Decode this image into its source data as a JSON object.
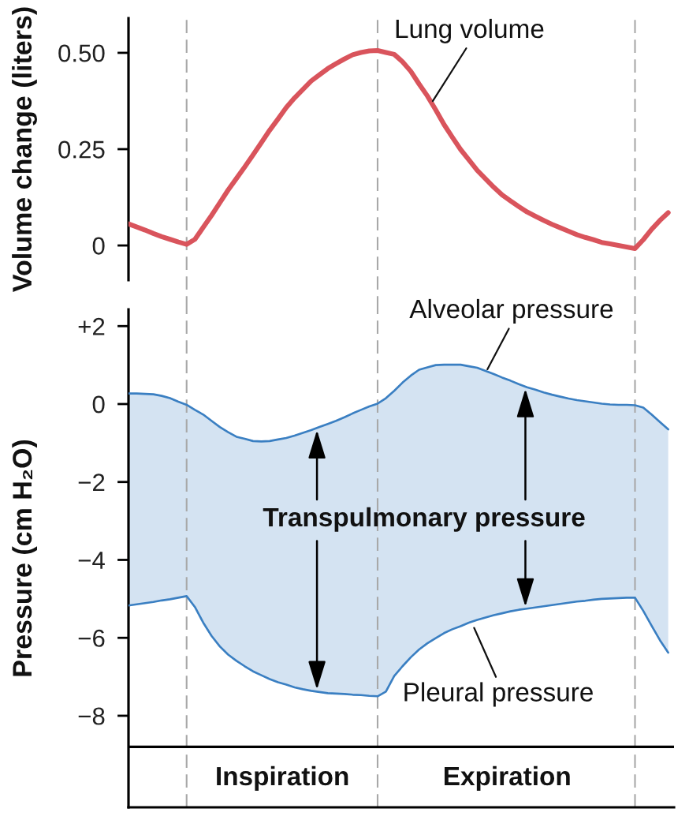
{
  "chart_data": [
    {
      "type": "line",
      "ylabel": "Volume change (liters)",
      "ylim": [
        -0.09,
        0.59
      ],
      "yticks": [
        0,
        {
          "value": 0.25,
          "label": "0.25"
        },
        {
          "value": 0.5,
          "label": "0.50"
        }
      ],
      "line_style": "solid",
      "grid": "x",
      "categories": [
        null,
        null,
        null,
        null,
        null,
        null,
        null,
        null,
        null,
        null,
        null,
        null,
        null,
        null,
        null,
        null,
        null,
        null,
        null,
        null,
        null,
        null,
        null,
        null,
        null,
        null,
        null,
        null,
        null,
        null,
        null,
        null,
        null,
        null,
        null,
        null,
        null,
        null,
        null,
        null,
        null,
        null,
        null,
        null,
        null,
        null,
        null,
        null,
        null,
        null,
        null,
        null,
        null,
        null,
        null,
        null,
        null,
        null,
        null,
        null,
        null,
        null,
        null,
        null,
        null,
        null
      ],
      "series": [
        {
          "name": "Lung volume",
          "color": "#d9545c",
          "values": [
            0.056,
            0.048,
            0.04,
            0.031,
            0.023,
            0.016,
            0.009,
            0.003,
            0.016,
            0.047,
            0.078,
            0.111,
            0.144,
            0.174,
            0.204,
            0.235,
            0.267,
            0.299,
            0.328,
            0.358,
            0.383,
            0.405,
            0.427,
            0.443,
            0.459,
            0.472,
            0.484,
            0.495,
            0.501,
            0.505,
            0.506,
            0.501,
            0.496,
            0.477,
            0.452,
            0.419,
            0.388,
            0.352,
            0.314,
            0.281,
            0.249,
            0.222,
            0.195,
            0.173,
            0.151,
            0.131,
            0.116,
            0.101,
            0.087,
            0.076,
            0.065,
            0.055,
            0.046,
            0.037,
            0.028,
            0.021,
            0.015,
            0.008,
            0.004,
            0.0,
            -0.004,
            -0.008,
            0.015,
            0.042,
            0.065,
            0.085
          ]
        }
      ]
    },
    {
      "type": "line",
      "ylabel": "Pressure (cm H₂O)",
      "ylim": [
        -10.35,
        2.43
      ],
      "yticks": [
        {
          "value": -8,
          "label": "−8"
        },
        {
          "value": -6,
          "label": "−6"
        },
        {
          "value": -4,
          "label": "−4"
        },
        {
          "value": -2,
          "label": "−2"
        },
        0,
        {
          "value": 2,
          "label": "+2"
        }
      ],
      "line_style": "solid",
      "grid": "x",
      "categories": [
        null,
        null,
        null,
        null,
        null,
        null,
        null,
        null,
        null,
        null,
        null,
        null,
        null,
        null,
        null,
        null,
        null,
        null,
        null,
        null,
        null,
        null,
        null,
        null,
        null,
        null,
        null,
        null,
        null,
        null,
        null,
        null,
        null,
        null,
        null,
        null,
        null,
        null,
        null,
        null,
        null,
        null,
        null,
        null,
        null,
        null,
        null,
        null,
        null,
        null,
        null,
        null,
        null,
        null,
        null,
        null,
        null,
        null,
        null,
        null,
        null,
        null,
        null,
        null,
        null,
        null
      ],
      "series": [
        {
          "name": "Alveolar pressure",
          "color": "#3a7fc2",
          "values": [
            0.27,
            0.27,
            0.26,
            0.25,
            0.21,
            0.15,
            0.06,
            -0.02,
            -0.15,
            -0.27,
            -0.43,
            -0.59,
            -0.72,
            -0.84,
            -0.89,
            -0.95,
            -0.96,
            -0.95,
            -0.91,
            -0.87,
            -0.81,
            -0.74,
            -0.67,
            -0.59,
            -0.51,
            -0.43,
            -0.34,
            -0.24,
            -0.15,
            -0.06,
            0.01,
            0.15,
            0.34,
            0.55,
            0.73,
            0.88,
            0.94,
            1.0,
            1.01,
            1.01,
            1.01,
            0.97,
            0.93,
            0.85,
            0.77,
            0.68,
            0.6,
            0.51,
            0.43,
            0.37,
            0.3,
            0.24,
            0.19,
            0.14,
            0.1,
            0.07,
            0.04,
            0.01,
            -0.01,
            -0.02,
            -0.02,
            -0.03,
            -0.09,
            -0.27,
            -0.46,
            -0.65
          ],
          "upper": [
            0.27,
            0.27,
            0.26,
            0.25,
            0.21,
            0.15,
            0.06,
            -0.02,
            -0.15,
            -0.27,
            -0.43,
            -0.59,
            -0.72,
            -0.84,
            -0.89,
            -0.95,
            -0.96,
            -0.95,
            -0.91,
            -0.87,
            -0.81,
            -0.74,
            -0.67,
            -0.59,
            -0.51,
            -0.43,
            -0.34,
            -0.24,
            -0.15,
            -0.06,
            0.01,
            0.15,
            0.34,
            0.55,
            0.73,
            0.88,
            0.94,
            1.0,
            1.01,
            1.01,
            1.01,
            0.97,
            0.93,
            0.85,
            0.77,
            0.68,
            0.6,
            0.51,
            0.43,
            0.37,
            0.3,
            0.24,
            0.19,
            0.14,
            0.1,
            0.07,
            0.04,
            0.01,
            -0.01,
            -0.02,
            -0.02,
            -0.03,
            -0.09,
            -0.27,
            -0.46,
            -0.65
          ],
          "lower": [
            -5.17,
            -5.14,
            -5.11,
            -5.08,
            -5.04,
            -5.01,
            -4.97,
            -4.93,
            -5.21,
            -5.61,
            -5.95,
            -6.22,
            -6.43,
            -6.59,
            -6.73,
            -6.86,
            -6.96,
            -7.06,
            -7.14,
            -7.2,
            -7.27,
            -7.32,
            -7.36,
            -7.39,
            -7.42,
            -7.43,
            -7.44,
            -7.46,
            -7.47,
            -7.49,
            -7.5,
            -7.38,
            -6.98,
            -6.73,
            -6.5,
            -6.3,
            -6.14,
            -6.01,
            -5.88,
            -5.78,
            -5.7,
            -5.61,
            -5.54,
            -5.48,
            -5.42,
            -5.37,
            -5.32,
            -5.28,
            -5.25,
            -5.22,
            -5.19,
            -5.16,
            -5.13,
            -5.1,
            -5.07,
            -5.05,
            -5.02,
            -5.0,
            -4.99,
            -4.98,
            -4.97,
            -4.97,
            -5.31,
            -5.69,
            -6.06,
            -6.38
          ]
        },
        {
          "name": "Pleural pressure",
          "color": "#3a7fc2",
          "values": [
            -5.17,
            -5.14,
            -5.11,
            -5.08,
            -5.04,
            -5.01,
            -4.97,
            -4.93,
            -5.21,
            -5.61,
            -5.95,
            -6.22,
            -6.43,
            -6.59,
            -6.73,
            -6.86,
            -6.96,
            -7.06,
            -7.14,
            -7.2,
            -7.27,
            -7.32,
            -7.36,
            -7.39,
            -7.42,
            -7.43,
            -7.44,
            -7.46,
            -7.47,
            -7.49,
            -7.5,
            -7.38,
            -6.98,
            -6.73,
            -6.5,
            -6.3,
            -6.14,
            -6.01,
            -5.88,
            -5.78,
            -5.7,
            -5.61,
            -5.54,
            -5.48,
            -5.42,
            -5.37,
            -5.32,
            -5.28,
            -5.25,
            -5.22,
            -5.19,
            -5.16,
            -5.13,
            -5.1,
            -5.07,
            -5.05,
            -5.02,
            -5.0,
            -4.99,
            -4.98,
            -4.97,
            -4.97,
            -5.31,
            -5.69,
            -6.06,
            -6.38
          ]
        }
      ],
      "ref_lines": [
        {
          "axis": "y",
          "value": -8.8,
          "color": "#000000",
          "line_style": "solid"
        }
      ],
      "annotations": [
        "Transpulmonary pressure",
        "Inspiration",
        "Expiration"
      ]
    }
  ]
}
